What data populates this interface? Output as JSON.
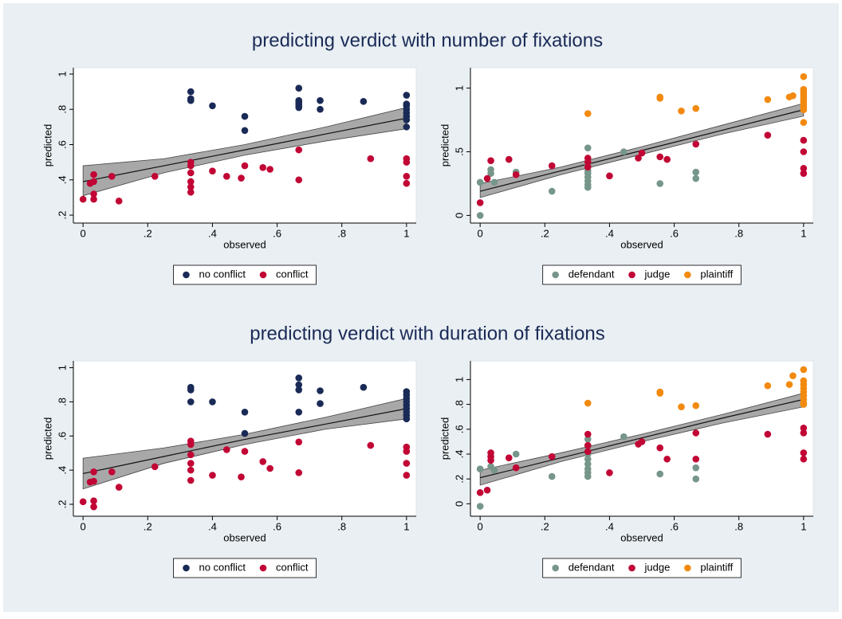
{
  "titles": [
    "predicting verdict with number of fixations",
    "predicting verdict with duration of fixations"
  ],
  "chart_data": [
    {
      "type": "scatter",
      "xlabel": "observed",
      "ylabel": "predicted",
      "legend": "bottom",
      "xlim": [
        -0.03,
        1.03
      ],
      "ylim": [
        0.155,
        1.036
      ],
      "xticks": [
        0,
        {
          "value": 0.2,
          "label": ".2"
        },
        {
          "value": 0.4,
          "label": ".4"
        },
        {
          "value": 0.6,
          "label": ".6"
        },
        {
          "value": 0.8,
          "label": ".8"
        },
        1
      ],
      "yticks": [
        {
          "value": 0.2,
          "label": ".2"
        },
        {
          "value": 0.4,
          "label": ".4"
        },
        {
          "value": 0.6,
          "label": ".6"
        },
        {
          "value": 0.8,
          "label": ".8"
        },
        1
      ],
      "series": [
        {
          "name": "no conflict",
          "color": "#1a2a56",
          "x": [
            0.333,
            0.333,
            0.333,
            0.4,
            0.5,
            0.5,
            0.667,
            0.667,
            0.667,
            0.667,
            0.667,
            0.667,
            0.733,
            0.733,
            0.867,
            1,
            1,
            1,
            1,
            1,
            1,
            1,
            1
          ],
          "values": [
            0.9,
            0.86,
            0.85,
            0.82,
            0.76,
            0.68,
            0.92,
            0.85,
            0.84,
            0.83,
            0.82,
            0.81,
            0.85,
            0.8,
            0.845,
            0.88,
            0.83,
            0.82,
            0.8,
            0.78,
            0.76,
            0.74,
            0.7
          ]
        },
        {
          "name": "conflict",
          "color": "#c10534",
          "x": [
            0,
            0.022,
            0.033,
            0.033,
            0.033,
            0.033,
            0.089,
            0.111,
            0.222,
            0.333,
            0.333,
            0.333,
            0.333,
            0.333,
            0.333,
            0.4,
            0.444,
            0.489,
            0.5,
            0.556,
            0.578,
            0.667,
            0.667,
            0.889,
            1,
            1,
            1,
            1
          ],
          "values": [
            0.29,
            0.38,
            0.39,
            0.43,
            0.32,
            0.29,
            0.42,
            0.28,
            0.42,
            0.5,
            0.48,
            0.44,
            0.39,
            0.36,
            0.33,
            0.45,
            0.42,
            0.41,
            0.48,
            0.47,
            0.46,
            0.57,
            0.4,
            0.52,
            0.52,
            0.5,
            0.42,
            0.38
          ]
        }
      ],
      "fit": {
        "x": [
          0,
          0.25,
          0.5,
          0.75,
          1
        ],
        "values": [
          0.39,
          0.48,
          0.57,
          0.66,
          0.75
        ],
        "lower": [
          0.31,
          0.44,
          0.54,
          0.62,
          0.69
        ],
        "upper": [
          0.48,
          0.52,
          0.6,
          0.7,
          0.81
        ]
      }
    },
    {
      "type": "scatter",
      "xlabel": "observed",
      "ylabel": "predicted",
      "legend": "bottom",
      "xlim": [
        -0.03,
        1.03
      ],
      "ylim": [
        -0.06,
        1.16
      ],
      "xticks": [
        0,
        {
          "value": 0.2,
          "label": ".2"
        },
        {
          "value": 0.4,
          "label": ".4"
        },
        {
          "value": 0.6,
          "label": ".6"
        },
        {
          "value": 0.8,
          "label": ".8"
        },
        1
      ],
      "yticks": [
        0,
        {
          "value": 0.5,
          "label": ".5"
        },
        1
      ],
      "series": [
        {
          "name": "defendant",
          "color": "#76968a",
          "x": [
            0,
            0,
            0.033,
            0.033,
            0.044,
            0.111,
            0.222,
            0.333,
            0.333,
            0.333,
            0.333,
            0.333,
            0.333,
            0.333,
            0.333,
            0.444,
            0.556,
            0.667,
            0.667
          ],
          "values": [
            0.26,
            0,
            0.36,
            0.33,
            0.26,
            0.34,
            0.19,
            0.53,
            0.4,
            0.35,
            0.33,
            0.3,
            0.27,
            0.24,
            0.22,
            0.5,
            0.25,
            0.34,
            0.29
          ]
        },
        {
          "name": "judge",
          "color": "#c10534",
          "x": [
            0,
            0.022,
            0.033,
            0.089,
            0.111,
            0.222,
            0.333,
            0.333,
            0.333,
            0.4,
            0.489,
            0.5,
            0.556,
            0.578,
            0.667,
            0.889,
            1,
            1,
            1,
            1
          ],
          "values": [
            0.1,
            0.29,
            0.43,
            0.44,
            0.32,
            0.39,
            0.45,
            0.42,
            0.38,
            0.31,
            0.45,
            0.49,
            0.46,
            0.44,
            0.56,
            0.63,
            0.59,
            0.5,
            0.37,
            0.33
          ]
        },
        {
          "name": "plaintiff",
          "color": "#f28a10",
          "x": [
            0.333,
            0.556,
            0.556,
            0.622,
            0.667,
            0.889,
            0.956,
            0.967,
            1,
            1,
            1,
            1,
            1,
            1,
            1,
            1,
            1,
            1,
            1
          ],
          "values": [
            0.8,
            0.93,
            0.92,
            0.82,
            0.84,
            0.91,
            0.93,
            0.94,
            1.09,
            0.99,
            0.97,
            0.95,
            0.93,
            0.91,
            0.89,
            0.87,
            0.85,
            0.83,
            0.73
          ]
        }
      ],
      "fit": {
        "x": [
          0,
          0.25,
          0.5,
          0.75,
          1
        ],
        "values": [
          0.19,
          0.35,
          0.51,
          0.67,
          0.83
        ],
        "lower": [
          0.14,
          0.32,
          0.48,
          0.64,
          0.78
        ],
        "upper": [
          0.25,
          0.38,
          0.54,
          0.71,
          0.88
        ]
      }
    },
    {
      "type": "scatter",
      "xlabel": "observed",
      "ylabel": "predicted",
      "legend": "bottom",
      "xlim": [
        -0.03,
        1.03
      ],
      "ylim": [
        0.13,
        1.04
      ],
      "xticks": [
        0,
        {
          "value": 0.2,
          "label": ".2"
        },
        {
          "value": 0.4,
          "label": ".4"
        },
        {
          "value": 0.6,
          "label": ".6"
        },
        {
          "value": 0.8,
          "label": ".8"
        },
        1
      ],
      "yticks": [
        {
          "value": 0.2,
          "label": ".2"
        },
        {
          "value": 0.4,
          "label": ".4"
        },
        {
          "value": 0.6,
          "label": ".6"
        },
        {
          "value": 0.8,
          "label": ".8"
        },
        1
      ],
      "series": [
        {
          "name": "no conflict",
          "color": "#1a2a56",
          "x": [
            0.333,
            0.333,
            0.333,
            0.4,
            0.5,
            0.5,
            0.667,
            0.667,
            0.667,
            0.667,
            0.733,
            0.733,
            0.867,
            1,
            1,
            1,
            1,
            1,
            1,
            1,
            1,
            1
          ],
          "values": [
            0.885,
            0.87,
            0.8,
            0.8,
            0.74,
            0.615,
            0.94,
            0.9,
            0.87,
            0.74,
            0.865,
            0.79,
            0.885,
            0.86,
            0.84,
            0.82,
            0.8,
            0.78,
            0.76,
            0.74,
            0.72,
            0.7
          ]
        },
        {
          "name": "conflict",
          "color": "#c10534",
          "x": [
            0,
            0.022,
            0.033,
            0.033,
            0.033,
            0.033,
            0.089,
            0.111,
            0.222,
            0.333,
            0.333,
            0.333,
            0.333,
            0.333,
            0.333,
            0.4,
            0.444,
            0.489,
            0.5,
            0.556,
            0.578,
            0.667,
            0.667,
            0.889,
            1,
            1,
            1,
            1
          ],
          "values": [
            0.215,
            0.33,
            0.335,
            0.39,
            0.22,
            0.185,
            0.39,
            0.3,
            0.42,
            0.57,
            0.55,
            0.49,
            0.44,
            0.4,
            0.34,
            0.37,
            0.52,
            0.36,
            0.51,
            0.45,
            0.41,
            0.565,
            0.385,
            0.545,
            0.535,
            0.51,
            0.44,
            0.37
          ]
        }
      ],
      "fit": {
        "x": [
          0,
          0.25,
          0.5,
          0.75,
          1
        ],
        "values": [
          0.38,
          0.48,
          0.58,
          0.67,
          0.76
        ],
        "lower": [
          0.29,
          0.44,
          0.55,
          0.64,
          0.7
        ],
        "upper": [
          0.47,
          0.53,
          0.61,
          0.71,
          0.82
        ]
      }
    },
    {
      "type": "scatter",
      "xlabel": "observed",
      "ylabel": "predicted",
      "legend": "bottom",
      "xlim": [
        -0.03,
        1.03
      ],
      "ylim": [
        -0.1,
        1.15
      ],
      "xticks": [
        0,
        {
          "value": 0.2,
          "label": ".2"
        },
        {
          "value": 0.4,
          "label": ".4"
        },
        {
          "value": 0.6,
          "label": ".6"
        },
        {
          "value": 0.8,
          "label": ".8"
        },
        1
      ],
      "yticks": [
        0,
        {
          "value": 0.2,
          "label": ".2"
        },
        {
          "value": 0.4,
          "label": ".4"
        },
        {
          "value": 0.6,
          "label": ".6"
        },
        {
          "value": 0.8,
          "label": ".8"
        },
        1
      ],
      "series": [
        {
          "name": "defendant",
          "color": "#76968a",
          "x": [
            0,
            0,
            0.033,
            0.044,
            0.111,
            0.222,
            0.333,
            0.333,
            0.333,
            0.333,
            0.333,
            0.333,
            0.333,
            0.333,
            0.444,
            0.556,
            0.667,
            0.667
          ],
          "values": [
            0.28,
            -0.02,
            0.3,
            0.27,
            0.4,
            0.22,
            0.52,
            0.46,
            0.4,
            0.36,
            0.32,
            0.28,
            0.25,
            0.22,
            0.54,
            0.24,
            0.29,
            0.2
          ]
        },
        {
          "name": "judge",
          "color": "#c10534",
          "x": [
            0,
            0.022,
            0.033,
            0.033,
            0.033,
            0.089,
            0.111,
            0.222,
            0.333,
            0.333,
            0.333,
            0.4,
            0.489,
            0.5,
            0.556,
            0.578,
            0.667,
            0.667,
            0.889,
            1,
            1,
            1,
            1
          ],
          "values": [
            0.09,
            0.11,
            0.41,
            0.38,
            0.35,
            0.37,
            0.29,
            0.38,
            0.56,
            0.47,
            0.42,
            0.25,
            0.48,
            0.5,
            0.45,
            0.36,
            0.57,
            0.36,
            0.56,
            0.61,
            0.57,
            0.41,
            0.36
          ]
        },
        {
          "name": "plaintiff",
          "color": "#f28a10",
          "x": [
            0.333,
            0.556,
            0.556,
            0.622,
            0.667,
            0.889,
            0.956,
            0.967,
            1,
            1,
            1,
            1,
            1,
            1,
            1,
            1,
            1
          ],
          "values": [
            0.81,
            0.9,
            0.89,
            0.78,
            0.79,
            0.95,
            0.96,
            1.03,
            1.08,
            0.99,
            0.96,
            0.93,
            0.9,
            0.87,
            0.84,
            0.81,
            0.8
          ]
        }
      ],
      "fit": {
        "x": [
          0,
          0.25,
          0.5,
          0.75,
          1
        ],
        "values": [
          0.21,
          0.37,
          0.53,
          0.69,
          0.84
        ],
        "lower": [
          0.15,
          0.34,
          0.5,
          0.65,
          0.78
        ],
        "upper": [
          0.27,
          0.41,
          0.56,
          0.72,
          0.89
        ]
      }
    }
  ]
}
